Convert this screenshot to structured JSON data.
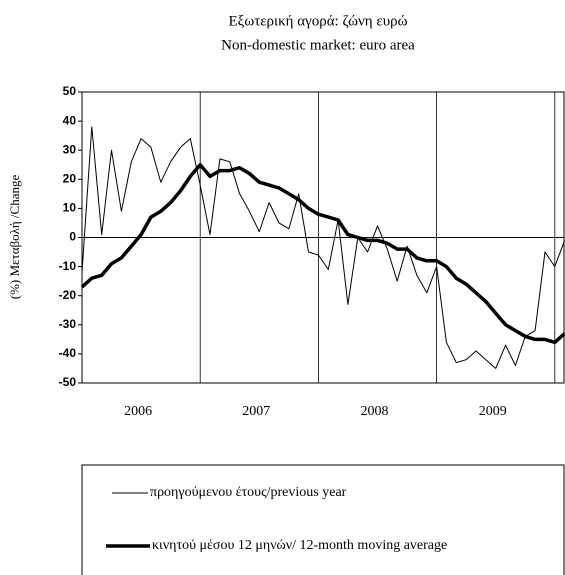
{
  "chart_data": {
    "type": "line",
    "title": "Εξωτερική αγορά: ζώνη ευρώ",
    "subtitle": "Non-domestic market: euro area",
    "y_label": "(%) Μεταβολή /Change",
    "categories": [
      null,
      null,
      null,
      null,
      null,
      null,
      "2006",
      null,
      null,
      null,
      null,
      null,
      null,
      null,
      null,
      null,
      null,
      null,
      "2007",
      null,
      null,
      null,
      null,
      null,
      null,
      null,
      null,
      null,
      null,
      null,
      "2008",
      null,
      null,
      null,
      null,
      null,
      null,
      null,
      null,
      null,
      null,
      null,
      "2009",
      null,
      null,
      null,
      null,
      null,
      null,
      null
    ],
    "series": [
      {
        "name": "προηγούμενου έτους/previous year",
        "color": "#000000",
        "width": 1,
        "values": [
          -12,
          38,
          1,
          30,
          9,
          26,
          34,
          31,
          19,
          26,
          31,
          34,
          18,
          1,
          27,
          26,
          15,
          9,
          2,
          12,
          5,
          3,
          15,
          -5,
          -6,
          -11,
          6,
          -23,
          0,
          -5,
          4,
          -4,
          -15,
          -3,
          -13,
          -19,
          -10,
          -36,
          -43,
          -42,
          -39,
          -42,
          -45,
          -37,
          -44,
          -34,
          -32,
          -5,
          -10,
          -1
        ]
      },
      {
        "name": "κινητού μέσου 12 μηνών/ 12-month moving average",
        "color": "#000000",
        "width": 3.5,
        "values": [
          -17,
          -14,
          -13,
          -9,
          -7,
          -3,
          1,
          7,
          9,
          12,
          16,
          21,
          25,
          21,
          23,
          23,
          24,
          22,
          19,
          18,
          17,
          15,
          13,
          10,
          8,
          7,
          6,
          1,
          0,
          -1,
          -1,
          -2,
          -4,
          -4,
          -7,
          -8,
          -8,
          -10,
          -14,
          -16,
          -19,
          -22,
          -26,
          -30,
          -32,
          -34,
          -35,
          -35,
          -36,
          -33
        ]
      }
    ],
    "ylim": [
      -50,
      50
    ],
    "yticks": [
      -50,
      -40,
      -30,
      -20,
      -10,
      0,
      10,
      20,
      30,
      40,
      50
    ]
  }
}
